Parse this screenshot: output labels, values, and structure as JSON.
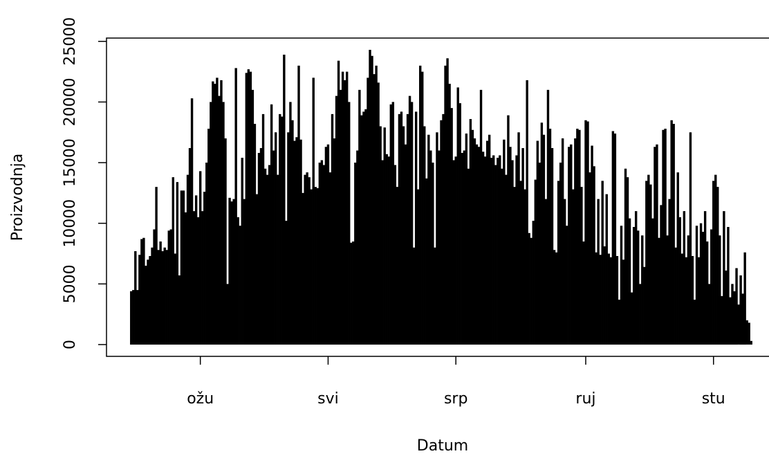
{
  "chart_data": {
    "type": "spikes",
    "x_label": "Datum",
    "y_label": "Proizvodnja",
    "color": "#000000",
    "x": [
      27,
      28,
      29,
      30,
      31,
      32,
      33,
      34,
      35,
      36,
      37,
      38,
      39,
      40,
      41,
      42,
      43,
      44,
      45,
      46,
      47,
      48,
      49,
      50,
      51,
      52,
      53,
      54,
      55,
      56,
      57,
      58,
      59,
      60,
      61,
      62,
      63,
      64,
      65,
      66,
      67,
      68,
      69,
      70,
      71,
      72,
      73,
      74,
      75,
      76,
      77,
      78,
      79,
      80,
      81,
      82,
      83,
      84,
      85,
      86,
      87,
      88,
      89,
      90,
      91,
      92,
      93,
      94,
      95,
      96,
      97,
      98,
      99,
      100,
      101,
      102,
      103,
      104,
      105,
      106,
      107,
      108,
      109,
      110,
      111,
      112,
      113,
      114,
      115,
      116,
      117,
      118,
      119,
      120,
      121,
      122,
      123,
      124,
      125,
      126,
      127,
      128,
      129,
      130,
      131,
      132,
      133,
      134,
      135,
      136,
      137,
      138,
      139,
      140,
      141,
      142,
      143,
      144,
      145,
      146,
      147,
      148,
      149,
      150,
      151,
      152,
      153,
      154,
      155,
      156,
      157,
      158,
      159,
      160,
      161,
      162,
      163,
      164,
      165,
      166,
      167,
      168,
      169,
      170,
      171,
      172,
      173,
      174,
      175,
      176,
      177,
      178,
      179,
      180,
      181,
      182,
      183,
      184,
      185,
      186,
      187,
      188,
      189,
      190,
      191,
      192,
      193,
      194,
      195,
      196,
      197,
      198,
      199,
      200,
      201,
      202,
      203,
      204,
      205,
      206,
      207,
      208,
      209,
      210,
      211,
      212,
      213,
      214,
      215,
      216,
      217,
      218,
      219,
      220,
      221,
      222,
      223,
      224,
      225,
      226,
      227,
      228,
      229,
      230,
      231,
      232,
      233,
      234,
      235,
      236,
      237,
      238,
      239,
      240,
      241,
      242,
      243,
      244,
      245,
      246,
      247,
      248,
      249,
      250,
      251,
      252,
      253,
      254,
      255,
      256,
      257,
      258,
      259,
      260,
      261,
      262,
      263,
      264,
      265,
      266,
      267,
      268,
      269,
      270,
      271,
      272,
      273,
      274,
      275,
      276,
      277,
      278,
      279,
      280,
      281,
      282,
      283,
      284,
      285,
      286,
      287,
      288,
      289,
      290,
      291,
      292,
      293,
      294,
      295,
      296,
      297,
      298,
      299,
      300,
      301,
      302,
      303,
      304,
      305,
      306,
      307,
      308,
      309,
      310,
      311,
      312,
      313,
      314,
      315,
      316,
      317,
      318,
      319,
      320,
      321,
      322,
      323
    ],
    "values": [
      4400,
      4500,
      7700,
      4500,
      7400,
      8700,
      8800,
      6500,
      7000,
      7300,
      8000,
      9500,
      13000,
      7800,
      8500,
      7700,
      8000,
      7800,
      9400,
      9500,
      13800,
      7500,
      13400,
      5700,
      12700,
      12700,
      10900,
      14000,
      16200,
      20300,
      11000,
      12300,
      10500,
      14300,
      11000,
      12600,
      15000,
      17800,
      20000,
      21700,
      21500,
      22000,
      20500,
      21800,
      20000,
      17000,
      5000,
      12100,
      11800,
      12000,
      22800,
      10500,
      9800,
      15400,
      12000,
      22400,
      22700,
      22500,
      21000,
      18200,
      12400,
      15800,
      16200,
      19000,
      14500,
      14000,
      14800,
      19800,
      16000,
      17500,
      14000,
      19000,
      18800,
      23900,
      10200,
      17500,
      20000,
      18500,
      16800,
      17100,
      23000,
      16900,
      12500,
      14000,
      14200,
      13800,
      12800,
      22000,
      13000,
      12900,
      15000,
      15200,
      14800,
      16300,
      16500,
      14200,
      19000,
      17000,
      20500,
      23400,
      21000,
      22500,
      21800,
      22500,
      20000,
      8400,
      8500,
      15000,
      16000,
      21000,
      18900,
      19200,
      19400,
      22000,
      24300,
      23800,
      22300,
      23000,
      21600,
      18000,
      15200,
      17900,
      15700,
      15500,
      19800,
      20000,
      14800,
      13000,
      19000,
      19200,
      18000,
      16500,
      19000,
      20500,
      20000,
      8000,
      19200,
      12800,
      23000,
      22500,
      18000,
      13700,
      17300,
      16000,
      15000,
      8000,
      17500,
      16000,
      18500,
      19000,
      23000,
      23600,
      21500,
      19500,
      15200,
      15500,
      21200,
      19900,
      15800,
      16000,
      17400,
      14500,
      18600,
      17700,
      17000,
      16500,
      16300,
      21000,
      15900,
      15500,
      16800,
      17300,
      15400,
      15600,
      14800,
      15400,
      15600,
      14500,
      16900,
      14000,
      18900,
      16300,
      15200,
      13000,
      15600,
      17500,
      13500,
      16200,
      12800,
      21800,
      9200,
      8800,
      10200,
      13600,
      16800,
      15000,
      18300,
      17300,
      12000,
      21000,
      17800,
      16200,
      7800,
      7600,
      13500,
      15000,
      17000,
      12000,
      9800,
      16300,
      16500,
      12800,
      17000,
      17800,
      17700,
      13000,
      8500,
      18500,
      18400,
      14200,
      16400,
      14700,
      7600,
      12000,
      7400,
      13500,
      8100,
      12400,
      7500,
      7200,
      17600,
      17400,
      7300,
      3700,
      9800,
      7000,
      14500,
      13800,
      10400,
      4300,
      9700,
      11000,
      9400,
      5000,
      9000,
      6400,
      13500,
      14000,
      13200,
      10400,
      16300,
      16500,
      8800,
      11500,
      17700,
      17800,
      9000,
      12000,
      18500,
      18200,
      8000,
      14200,
      10500,
      7500,
      11000,
      7200,
      9000,
      17500,
      7300,
      3700,
      9800,
      7200,
      10000,
      9300,
      11000,
      8500,
      5000,
      9500,
      13500,
      14000,
      13000,
      9000,
      4000,
      11000,
      6100,
      9700,
      3900,
      5000,
      4400,
      6300,
      3300,
      5700,
      4200,
      7600,
      2000,
      1800,
      300
    ],
    "xlim": [
      15.2,
      334.8
    ],
    "xticks": [
      {
        "value": 60,
        "label": "ožu"
      },
      {
        "value": 121,
        "label": "svi"
      },
      {
        "value": 182,
        "label": "srp"
      },
      {
        "value": 244,
        "label": "ruj"
      },
      {
        "value": 305,
        "label": "stu"
      }
    ],
    "ylim": [
      -972,
      25272
    ],
    "yticks": [
      0,
      5000,
      10000,
      15000,
      20000,
      25000
    ]
  }
}
